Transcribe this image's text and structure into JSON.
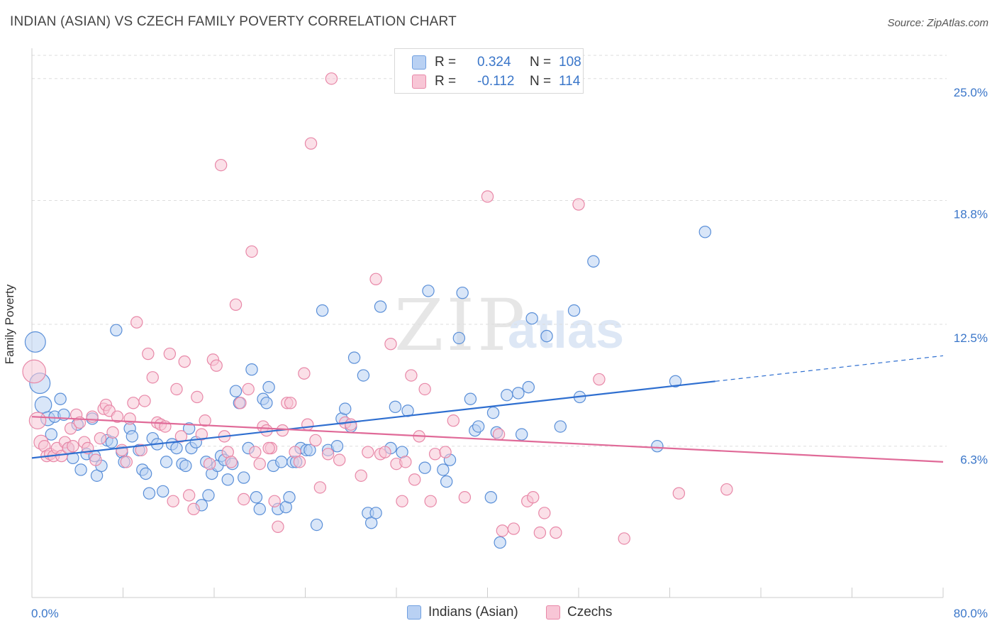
{
  "header": {
    "title": "INDIAN (ASIAN) VS CZECH FAMILY POVERTY CORRELATION CHART",
    "source": "Source: ZipAtlas.com"
  },
  "watermark": {
    "zip": "ZIP",
    "atlas": "atlas"
  },
  "legend": {
    "rows": [
      {
        "r_label": "R =",
        "r_value": "0.324",
        "n_label": "N =",
        "n_value": "108",
        "color": "#6f9fe0",
        "fill": "#b9d1f3"
      },
      {
        "r_label": "R =",
        "r_value": "-0.112",
        "n_label": "N =",
        "n_value": "114",
        "color": "#e888a8",
        "fill": "#f8c6d6"
      }
    ]
  },
  "bottom_legend": [
    {
      "label": "Indians (Asian)",
      "color": "#6f9fe0",
      "fill": "#b9d1f3"
    },
    {
      "label": "Czechs",
      "color": "#e888a8",
      "fill": "#f8c6d6"
    }
  ],
  "chart_data": {
    "type": "scatter",
    "title": "INDIAN (ASIAN) VS CZECH FAMILY POVERTY CORRELATION CHART",
    "ylabel": "Family Poverty",
    "xlabel": "",
    "xlim": [
      0,
      80
    ],
    "ylim": [
      -1.4,
      26.4
    ],
    "x_tick_labels": [
      "0.0%",
      "80.0%"
    ],
    "y_ticks": [
      6.3,
      12.5,
      18.8,
      25.0
    ],
    "y_tick_labels": [
      "6.3%",
      "12.5%",
      "18.8%",
      "25.0%"
    ],
    "grid": "horizontal dashed",
    "series": [
      {
        "name": "Indians (Asian)",
        "color": "#5a8fd8",
        "fill": "#b9d1f3",
        "trend": {
          "x": [
            0,
            60
          ],
          "y": [
            5.7,
            9.6
          ],
          "dashed_extension_to": [
            80,
            10.9
          ],
          "color": "#2f6fd0"
        },
        "points": [
          [
            0.3,
            11.6,
            1.6
          ],
          [
            0.7,
            9.5,
            1.6
          ],
          [
            1.0,
            8.4,
            1.3
          ],
          [
            1.4,
            7.7,
            1.1
          ],
          [
            1.7,
            6.9,
            0.9
          ],
          [
            2.0,
            7.8,
            0.9
          ],
          [
            2.5,
            8.7,
            0.9
          ],
          [
            2.8,
            7.9,
            0.9
          ],
          [
            3.2,
            6.2,
            0.9
          ],
          [
            3.6,
            5.7,
            0.9
          ],
          [
            4.0,
            7.4,
            0.9
          ],
          [
            4.3,
            5.1,
            0.9
          ],
          [
            4.8,
            5.9,
            0.9
          ],
          [
            5.3,
            7.7,
            0.9
          ],
          [
            5.5,
            5.8,
            0.9
          ],
          [
            5.7,
            4.8,
            0.9
          ],
          [
            6.1,
            5.3,
            0.9
          ],
          [
            6.6,
            6.6,
            0.9
          ],
          [
            7.0,
            6.5,
            0.9
          ],
          [
            7.4,
            12.2,
            0.9
          ],
          [
            7.9,
            6.0,
            0.9
          ],
          [
            8.1,
            5.5,
            0.9
          ],
          [
            8.6,
            7.2,
            0.9
          ],
          [
            8.8,
            6.8,
            0.9
          ],
          [
            9.4,
            6.1,
            0.9
          ],
          [
            9.7,
            5.1,
            0.9
          ],
          [
            10.0,
            4.9,
            0.9
          ],
          [
            10.3,
            3.9,
            0.9
          ],
          [
            10.6,
            6.7,
            0.9
          ],
          [
            11.0,
            6.4,
            0.9
          ],
          [
            11.5,
            4.0,
            0.9
          ],
          [
            11.8,
            5.5,
            0.9
          ],
          [
            12.3,
            6.4,
            0.9
          ],
          [
            12.7,
            6.2,
            0.9
          ],
          [
            13.2,
            5.4,
            0.9
          ],
          [
            13.5,
            5.3,
            0.9
          ],
          [
            13.8,
            7.2,
            0.9
          ],
          [
            14.0,
            6.2,
            0.9
          ],
          [
            14.4,
            6.5,
            0.9
          ],
          [
            14.9,
            3.3,
            0.9
          ],
          [
            15.3,
            5.5,
            0.9
          ],
          [
            15.5,
            3.8,
            0.9
          ],
          [
            15.8,
            4.9,
            0.9
          ],
          [
            16.3,
            5.3,
            0.9
          ],
          [
            16.6,
            5.8,
            0.9
          ],
          [
            16.9,
            5.6,
            0.9
          ],
          [
            17.2,
            4.6,
            0.9
          ],
          [
            17.6,
            5.4,
            0.9
          ],
          [
            17.9,
            9.1,
            0.9
          ],
          [
            18.2,
            8.5,
            0.9
          ],
          [
            18.6,
            4.7,
            0.9
          ],
          [
            19.0,
            6.2,
            0.9
          ],
          [
            19.3,
            10.2,
            0.9
          ],
          [
            19.7,
            3.7,
            0.9
          ],
          [
            20.0,
            3.1,
            0.9
          ],
          [
            20.3,
            8.7,
            0.9
          ],
          [
            20.6,
            8.5,
            0.9
          ],
          [
            20.8,
            9.3,
            0.9
          ],
          [
            21.2,
            5.3,
            0.9
          ],
          [
            21.6,
            3.1,
            0.9
          ],
          [
            21.9,
            5.5,
            0.9
          ],
          [
            22.3,
            3.2,
            0.9
          ],
          [
            22.6,
            3.7,
            0.9
          ],
          [
            22.9,
            5.5,
            0.9
          ],
          [
            23.2,
            5.5,
            0.9
          ],
          [
            23.6,
            6.2,
            0.9
          ],
          [
            24.1,
            6.1,
            0.9
          ],
          [
            24.4,
            6.1,
            0.9
          ],
          [
            25.0,
            2.3,
            0.9
          ],
          [
            25.5,
            13.2,
            0.9
          ],
          [
            26.0,
            6.1,
            0.9
          ],
          [
            26.8,
            6.3,
            0.9
          ],
          [
            27.2,
            7.7,
            0.9
          ],
          [
            27.5,
            8.2,
            0.9
          ],
          [
            28.0,
            7.3,
            0.9
          ],
          [
            28.3,
            10.8,
            0.9
          ],
          [
            29.1,
            9.9,
            0.9
          ],
          [
            29.5,
            2.9,
            0.9
          ],
          [
            29.8,
            2.4,
            0.9
          ],
          [
            30.2,
            2.9,
            0.9
          ],
          [
            30.6,
            13.4,
            0.9
          ],
          [
            31.5,
            6.2,
            0.9
          ],
          [
            31.9,
            8.3,
            0.9
          ],
          [
            32.5,
            6.0,
            0.9
          ],
          [
            33.0,
            8.1,
            0.9
          ],
          [
            34.5,
            5.2,
            0.9
          ],
          [
            34.8,
            14.2,
            0.9
          ],
          [
            36.1,
            5.1,
            0.9
          ],
          [
            36.4,
            4.5,
            0.9
          ],
          [
            36.7,
            5.6,
            0.9
          ],
          [
            37.5,
            11.8,
            0.9
          ],
          [
            37.8,
            14.1,
            0.9
          ],
          [
            38.5,
            8.7,
            0.9
          ],
          [
            38.9,
            7.1,
            0.9
          ],
          [
            39.2,
            7.3,
            0.9
          ],
          [
            40.3,
            3.7,
            0.9
          ],
          [
            40.5,
            8.0,
            0.9
          ],
          [
            40.8,
            7.0,
            0.9
          ],
          [
            41.1,
            1.4,
            0.9
          ],
          [
            41.7,
            8.9,
            0.9
          ],
          [
            42.7,
            9.0,
            0.9
          ],
          [
            43.0,
            6.9,
            0.9
          ],
          [
            43.6,
            9.3,
            0.9
          ],
          [
            43.9,
            12.8,
            0.9
          ],
          [
            45.2,
            11.9,
            0.9
          ],
          [
            46.4,
            7.3,
            0.9
          ],
          [
            47.6,
            13.2,
            0.9
          ],
          [
            48.1,
            8.8,
            0.9
          ],
          [
            49.3,
            15.7,
            0.9
          ],
          [
            54.9,
            6.3,
            0.9
          ],
          [
            56.5,
            9.6,
            0.9
          ],
          [
            59.1,
            17.2,
            0.9
          ]
        ]
      },
      {
        "name": "Czechs",
        "color": "#e888a8",
        "fill": "#f8c6d6",
        "trend": {
          "x": [
            0,
            80
          ],
          "y": [
            7.8,
            5.5
          ],
          "color": "#e06a98"
        },
        "points": [
          [
            0.2,
            10.1,
            1.8
          ],
          [
            0.5,
            7.6,
            1.3
          ],
          [
            0.8,
            6.5,
            1.1
          ],
          [
            1.1,
            6.3,
            0.9
          ],
          [
            1.3,
            5.8,
            0.9
          ],
          [
            1.6,
            5.9,
            0.9
          ],
          [
            1.9,
            5.8,
            0.9
          ],
          [
            2.2,
            6.2,
            0.9
          ],
          [
            2.6,
            5.8,
            0.9
          ],
          [
            2.9,
            6.5,
            0.9
          ],
          [
            3.2,
            6.2,
            0.9
          ],
          [
            3.4,
            7.2,
            0.9
          ],
          [
            3.6,
            6.3,
            0.9
          ],
          [
            3.9,
            7.9,
            0.9
          ],
          [
            4.2,
            7.5,
            0.9
          ],
          [
            4.6,
            6.5,
            0.9
          ],
          [
            4.9,
            6.2,
            0.9
          ],
          [
            5.3,
            7.8,
            0.9
          ],
          [
            5.6,
            5.6,
            0.9
          ],
          [
            6.0,
            6.7,
            0.9
          ],
          [
            6.3,
            8.2,
            0.9
          ],
          [
            6.5,
            8.4,
            0.9
          ],
          [
            6.8,
            8.1,
            0.9
          ],
          [
            7.1,
            7.0,
            0.9
          ],
          [
            7.5,
            7.8,
            0.9
          ],
          [
            7.9,
            6.1,
            0.9
          ],
          [
            8.3,
            5.5,
            0.9
          ],
          [
            8.6,
            7.7,
            0.9
          ],
          [
            8.9,
            8.5,
            0.9
          ],
          [
            9.2,
            12.6,
            0.9
          ],
          [
            9.6,
            6.1,
            0.9
          ],
          [
            9.9,
            8.6,
            0.9
          ],
          [
            10.2,
            11.0,
            0.9
          ],
          [
            10.6,
            9.8,
            0.9
          ],
          [
            11.0,
            7.5,
            0.9
          ],
          [
            11.3,
            7.4,
            0.9
          ],
          [
            11.7,
            7.3,
            0.9
          ],
          [
            12.1,
            11.0,
            0.9
          ],
          [
            12.4,
            3.5,
            0.9
          ],
          [
            12.7,
            9.2,
            0.9
          ],
          [
            13.1,
            6.8,
            0.9
          ],
          [
            13.4,
            10.6,
            0.9
          ],
          [
            13.8,
            3.8,
            0.9
          ],
          [
            14.2,
            3.1,
            0.9
          ],
          [
            14.5,
            8.8,
            0.9
          ],
          [
            14.9,
            6.9,
            0.9
          ],
          [
            15.2,
            7.6,
            0.9
          ],
          [
            15.6,
            5.4,
            0.9
          ],
          [
            15.9,
            10.7,
            0.9
          ],
          [
            16.2,
            10.4,
            0.9
          ],
          [
            16.6,
            20.6,
            0.9
          ],
          [
            16.9,
            6.8,
            0.9
          ],
          [
            17.2,
            6.0,
            0.9
          ],
          [
            17.5,
            5.5,
            0.9
          ],
          [
            17.9,
            13.5,
            0.9
          ],
          [
            18.3,
            8.5,
            0.9
          ],
          [
            18.6,
            3.6,
            0.9
          ],
          [
            19.0,
            9.2,
            0.9
          ],
          [
            19.3,
            16.2,
            0.9
          ],
          [
            19.6,
            6.0,
            0.9
          ],
          [
            20.0,
            5.4,
            0.9
          ],
          [
            20.3,
            7.3,
            0.9
          ],
          [
            20.6,
            7.1,
            0.9
          ],
          [
            21.0,
            6.2,
            0.9
          ],
          [
            21.3,
            3.5,
            0.9
          ],
          [
            21.6,
            2.2,
            0.9
          ],
          [
            22.0,
            7.1,
            0.9
          ],
          [
            22.4,
            8.5,
            0.9
          ],
          [
            22.7,
            8.5,
            0.9
          ],
          [
            23.1,
            6.0,
            0.9
          ],
          [
            23.5,
            5.5,
            0.9
          ],
          [
            23.9,
            10.0,
            0.9
          ],
          [
            24.2,
            7.4,
            0.9
          ],
          [
            24.5,
            21.7,
            0.9
          ],
          [
            24.9,
            6.6,
            0.9
          ],
          [
            25.3,
            4.2,
            0.9
          ],
          [
            26.0,
            5.9,
            0.9
          ],
          [
            27.0,
            5.6,
            0.9
          ],
          [
            27.5,
            7.5,
            0.9
          ],
          [
            28.0,
            7.4,
            0.9
          ],
          [
            28.9,
            4.8,
            0.9
          ],
          [
            29.5,
            6.0,
            0.9
          ],
          [
            30.2,
            14.8,
            0.9
          ],
          [
            30.6,
            5.9,
            0.9
          ],
          [
            31.0,
            6.0,
            0.9
          ],
          [
            31.5,
            11.5,
            0.9
          ],
          [
            32.0,
            5.4,
            0.9
          ],
          [
            32.5,
            3.5,
            0.9
          ],
          [
            32.8,
            5.5,
            0.9
          ],
          [
            33.3,
            9.9,
            0.9
          ],
          [
            33.6,
            4.6,
            0.9
          ],
          [
            34.0,
            6.8,
            0.9
          ],
          [
            34.5,
            9.2,
            0.9
          ],
          [
            35.0,
            3.5,
            0.9
          ],
          [
            35.4,
            5.9,
            0.9
          ],
          [
            36.3,
            6.0,
            0.9
          ],
          [
            37.0,
            7.6,
            0.9
          ],
          [
            38.0,
            3.7,
            0.9
          ],
          [
            40.0,
            19.0,
            0.9
          ],
          [
            41.0,
            6.9,
            0.9
          ],
          [
            41.3,
            2.0,
            0.9
          ],
          [
            42.3,
            2.1,
            0.9
          ],
          [
            43.5,
            3.5,
            0.9
          ],
          [
            44.0,
            3.7,
            0.9
          ],
          [
            44.6,
            1.9,
            0.9
          ],
          [
            45.0,
            2.9,
            0.9
          ],
          [
            46.0,
            1.9,
            0.9
          ],
          [
            48.0,
            18.6,
            0.9
          ],
          [
            49.8,
            9.7,
            0.9
          ],
          [
            52.0,
            1.6,
            0.9
          ],
          [
            56.8,
            3.9,
            0.9
          ],
          [
            61.0,
            4.1,
            0.9
          ],
          [
            26.3,
            25.0,
            0.9
          ],
          [
            20.8,
            6.2,
            0.9
          ]
        ]
      }
    ]
  }
}
